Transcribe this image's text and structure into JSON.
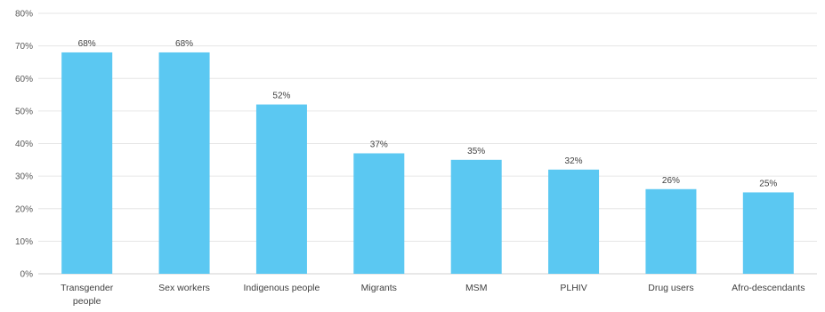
{
  "chart_data": {
    "type": "bar",
    "categories": [
      "Transgender people",
      "Sex workers",
      "Indigenous people",
      "Migrants",
      "MSM",
      "PLHIV",
      "Drug users",
      "Afro-descendants"
    ],
    "category_lines": [
      [
        "Transgender",
        "people"
      ],
      [
        "Sex workers"
      ],
      [
        "Indigenous people"
      ],
      [
        "Migrants"
      ],
      [
        "MSM"
      ],
      [
        "PLHIV"
      ],
      [
        "Drug users"
      ],
      [
        "Afro-descendants"
      ]
    ],
    "values": [
      68,
      68,
      52,
      37,
      35,
      32,
      26,
      25
    ],
    "data_labels": [
      "68%",
      "68%",
      "52%",
      "37%",
      "35%",
      "32%",
      "26%",
      "25%"
    ],
    "yticks": [
      0,
      10,
      20,
      30,
      40,
      50,
      60,
      70,
      80
    ],
    "ytick_labels": [
      "0%",
      "10%",
      "20%",
      "30%",
      "40%",
      "50%",
      "60%",
      "70%",
      "80%"
    ],
    "ylim": [
      0,
      80
    ],
    "grid": true,
    "bar_color": "#5bc8f2",
    "title": "",
    "xlabel": "",
    "ylabel": ""
  }
}
